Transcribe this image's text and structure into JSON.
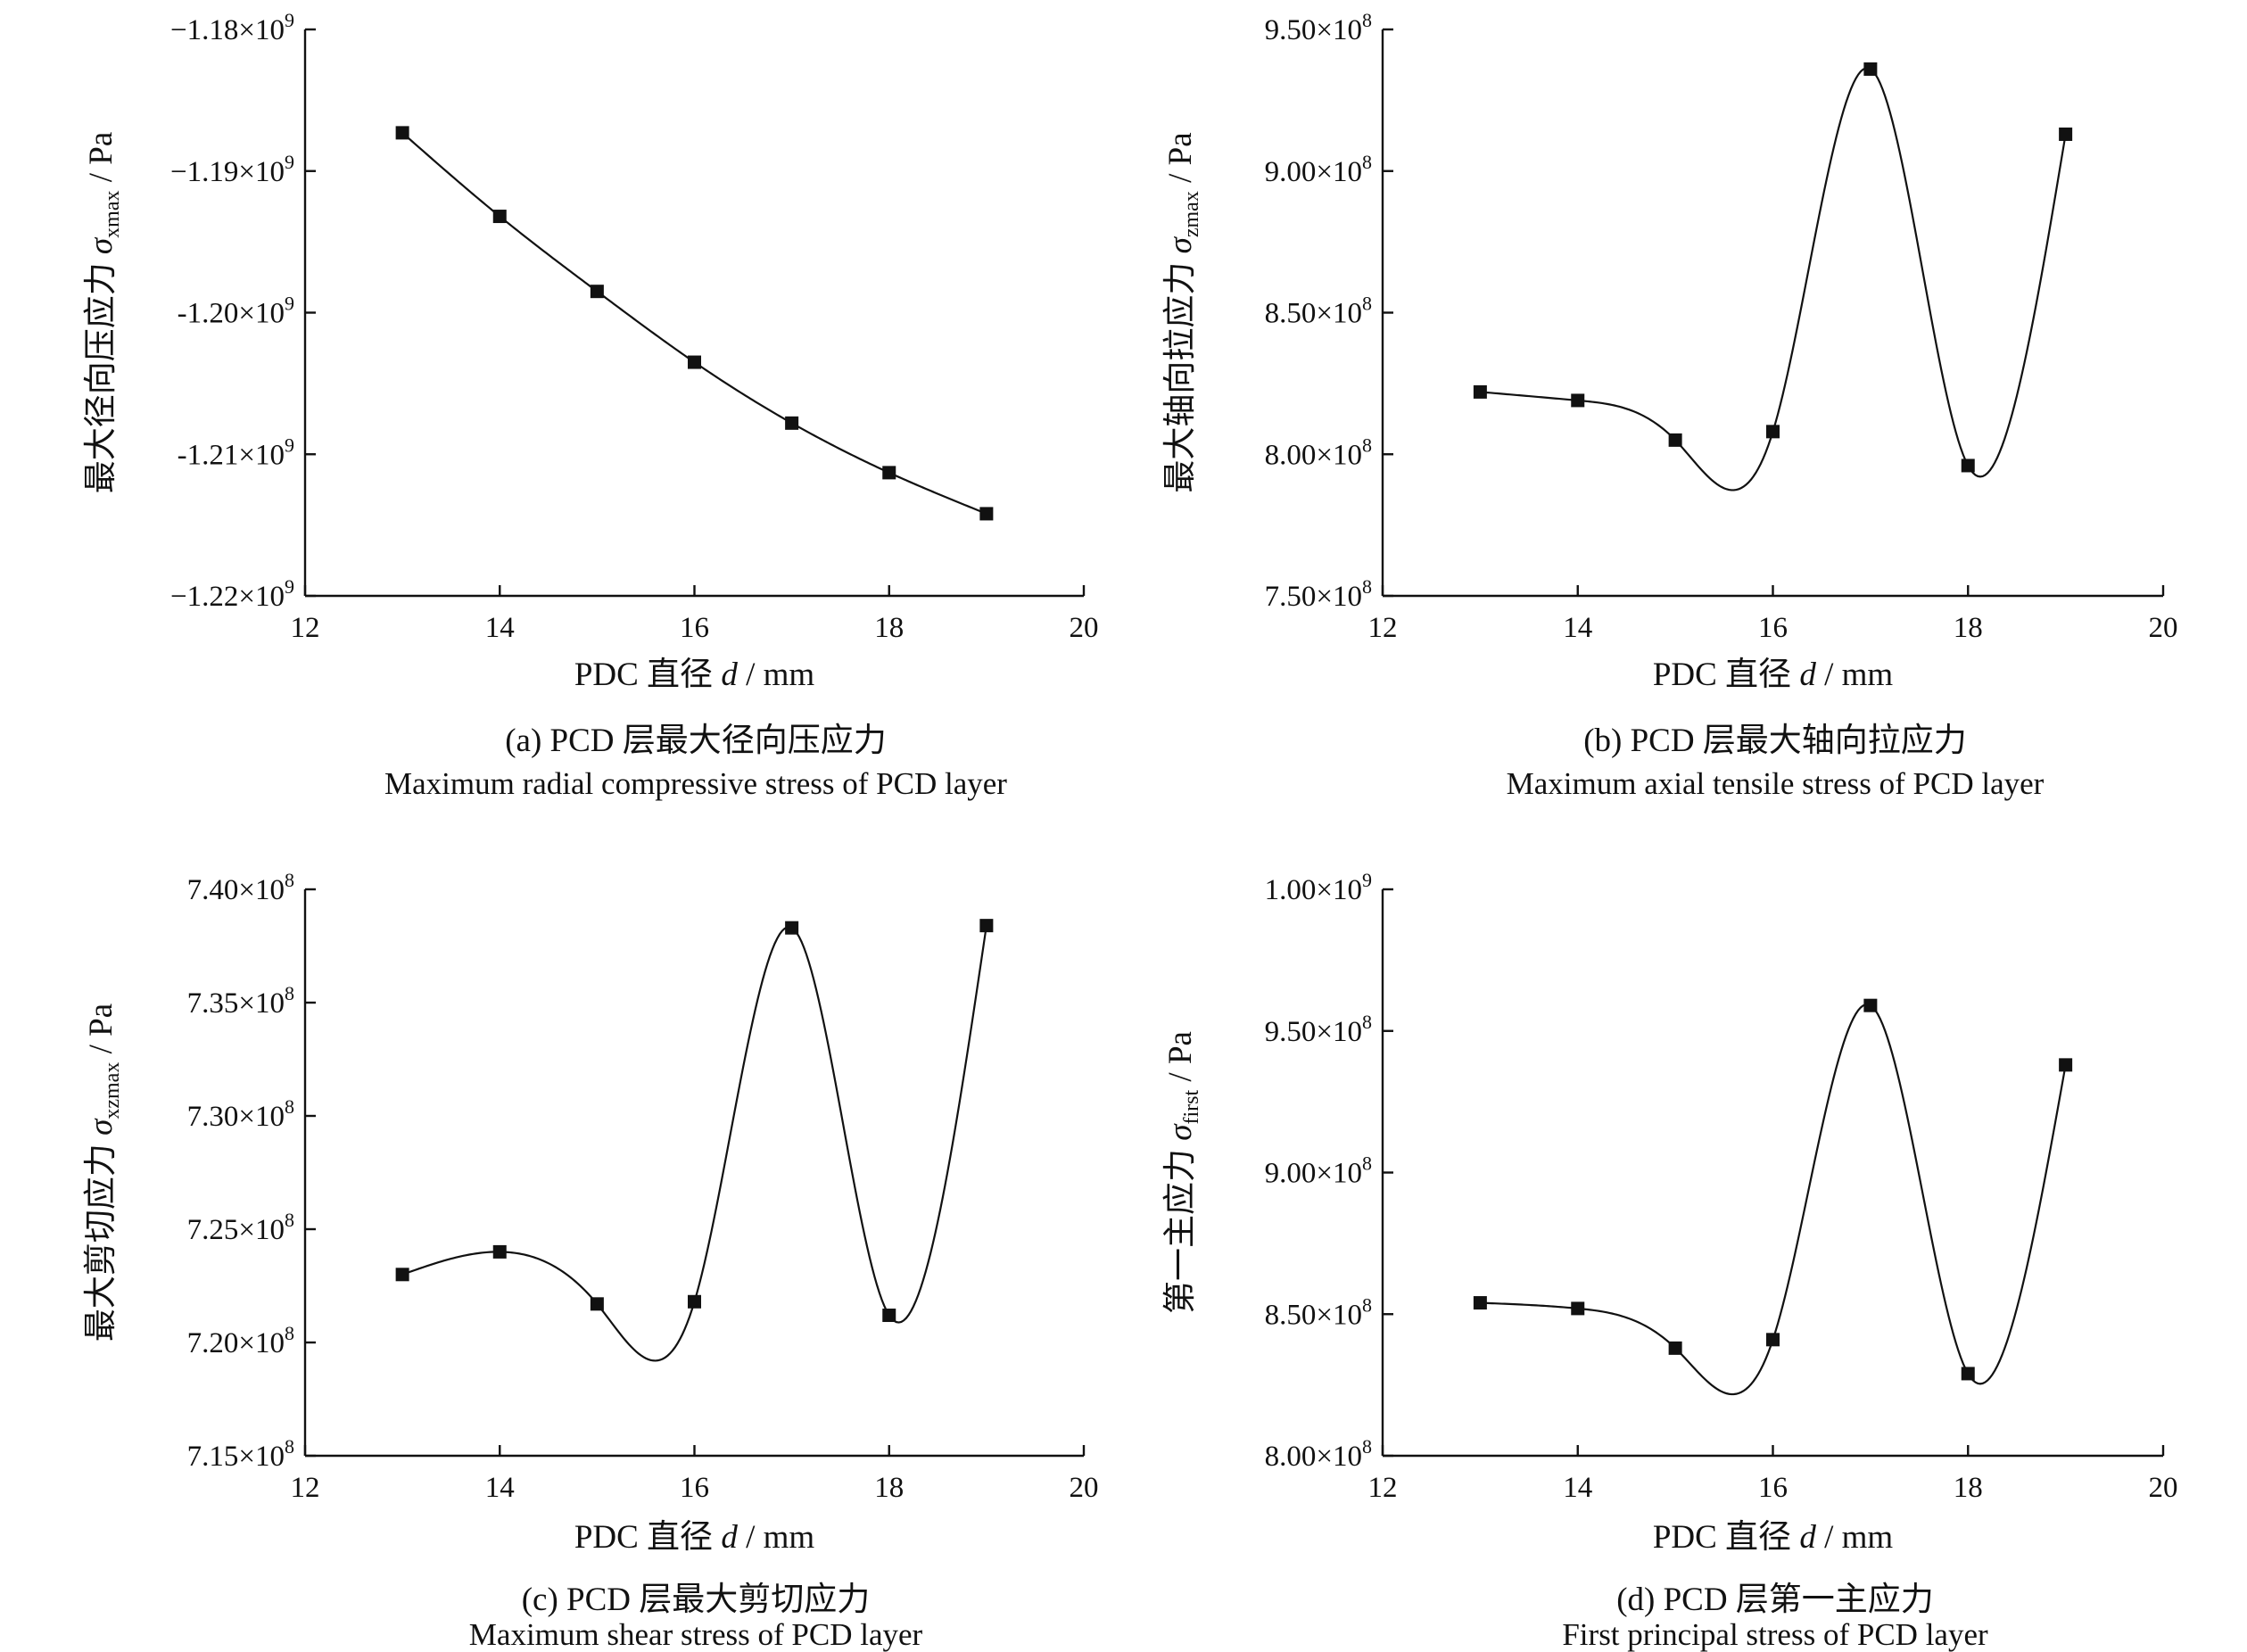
{
  "chart_data": [
    {
      "type": "line",
      "panel": "a",
      "xlabel": {
        "prefix": "PDC 直径 ",
        "var": "d",
        "suffix": " / mm"
      },
      "ylabel": {
        "prefix": "最大径向压应力 ",
        "var": "σ",
        "sub": "xmax",
        "suffix": " / Pa"
      },
      "xlim": [
        12,
        20
      ],
      "ylim": [
        -1220000000.0,
        -1180000000.0
      ],
      "xticks": [
        12,
        14,
        16,
        18,
        20
      ],
      "xtick_labels": [
        "12",
        "14",
        "16",
        "18",
        "20"
      ],
      "yticks": [
        -1180000000.0,
        -1190000000.0,
        -1200000000.0,
        -1210000000.0,
        -1220000000.0
      ],
      "ytick_labels": [
        {
          "m": "−1.18×10",
          "e": "9"
        },
        {
          "m": "−1.19×10",
          "e": "9"
        },
        {
          "m": "-1.20×10",
          "e": "9"
        },
        {
          "m": "-1.21×10",
          "e": "9"
        },
        {
          "m": "−1.22×10",
          "e": "9"
        }
      ],
      "x": [
        13,
        14,
        15,
        16,
        17,
        18,
        19
      ],
      "y": [
        -1187300000.0,
        -1193200000.0,
        -1198500000.0,
        -1203500000.0,
        -1207800000.0,
        -1211300000.0,
        -1214200000.0
      ],
      "caption_cn": "(a) PCD 层最大径向压应力",
      "caption_en": "Maximum radial compressive stress of PCD layer"
    },
    {
      "type": "line",
      "panel": "b",
      "xlabel": {
        "prefix": "PDC 直径 ",
        "var": "d",
        "suffix": " / mm"
      },
      "ylabel": {
        "prefix": "最大轴向拉应力 ",
        "var": "σ",
        "sub": "zmax",
        "suffix": " / Pa"
      },
      "xlim": [
        12,
        20
      ],
      "ylim": [
        750000000.0,
        950000000.0
      ],
      "xticks": [
        12,
        14,
        16,
        18,
        20
      ],
      "xtick_labels": [
        "12",
        "14",
        "16",
        "18",
        "20"
      ],
      "yticks": [
        950000000.0,
        900000000.0,
        850000000.0,
        800000000.0,
        750000000.0
      ],
      "ytick_labels": [
        {
          "m": "9.50×10",
          "e": "8"
        },
        {
          "m": "9.00×10",
          "e": "8"
        },
        {
          "m": "8.50×10",
          "e": "8"
        },
        {
          "m": "8.00×10",
          "e": "8"
        },
        {
          "m": "7.50×10",
          "e": "8"
        }
      ],
      "x": [
        13,
        14,
        15,
        16,
        17,
        18,
        19
      ],
      "y": [
        822000000.0,
        819000000.0,
        805000000.0,
        808000000.0,
        936000000.0,
        796000000.0,
        913000000.0
      ],
      "caption_cn": "(b) PCD 层最大轴向拉应力",
      "caption_en": "Maximum axial tensile stress of PCD layer"
    },
    {
      "type": "line",
      "panel": "c",
      "xlabel": {
        "prefix": "PDC 直径 ",
        "var": "d",
        "suffix": " / mm"
      },
      "ylabel": {
        "prefix": "最大剪切应力 ",
        "var": "σ",
        "sub": "xzmax",
        "suffix": " / Pa"
      },
      "xlim": [
        12,
        20
      ],
      "ylim": [
        715000000.0,
        740000000.0
      ],
      "xticks": [
        12,
        14,
        16,
        18,
        20
      ],
      "xtick_labels": [
        "12",
        "14",
        "16",
        "18",
        "20"
      ],
      "yticks": [
        740000000.0,
        735000000.0,
        730000000.0,
        725000000.0,
        720000000.0,
        715000000.0
      ],
      "ytick_labels": [
        {
          "m": "7.40×10",
          "e": "8"
        },
        {
          "m": "7.35×10",
          "e": "8"
        },
        {
          "m": "7.30×10",
          "e": "8"
        },
        {
          "m": "7.25×10",
          "e": "8"
        },
        {
          "m": "7.20×10",
          "e": "8"
        },
        {
          "m": "7.15×10",
          "e": "8"
        }
      ],
      "x": [
        13,
        14,
        15,
        16,
        17,
        18,
        19
      ],
      "y": [
        723000000.0,
        724000000.0,
        721700000.0,
        721800000.0,
        738300000.0,
        721200000.0,
        738400000.0
      ],
      "caption_cn": "(c) PCD 层最大剪切应力",
      "caption_en": "Maximum shear stress of PCD layer"
    },
    {
      "type": "line",
      "panel": "d",
      "xlabel": {
        "prefix": "PDC 直径 ",
        "var": "d",
        "suffix": " / mm"
      },
      "ylabel": {
        "prefix": "第一主应力 ",
        "var": "σ",
        "sub": "first",
        "suffix": " / Pa"
      },
      "xlim": [
        12,
        20
      ],
      "ylim": [
        800000000.0,
        1000000000.0
      ],
      "xticks": [
        12,
        14,
        16,
        18,
        20
      ],
      "xtick_labels": [
        "12",
        "14",
        "16",
        "18",
        "20"
      ],
      "yticks": [
        1000000000.0,
        950000000.0,
        900000000.0,
        850000000.0,
        800000000.0
      ],
      "ytick_labels": [
        {
          "m": "1.00×10",
          "e": "9"
        },
        {
          "m": "9.50×10",
          "e": "8"
        },
        {
          "m": "9.00×10",
          "e": "8"
        },
        {
          "m": "8.50×10",
          "e": "8"
        },
        {
          "m": "8.00×10",
          "e": "8"
        }
      ],
      "x": [
        13,
        14,
        15,
        16,
        17,
        18,
        19
      ],
      "y": [
        854000000.0,
        852000000.0,
        838000000.0,
        841000000.0,
        959000000.0,
        829000000.0,
        938000000.0
      ],
      "caption_cn": "(d) PCD 层第一主应力",
      "caption_en": "First principal stress of PCD layer"
    }
  ]
}
